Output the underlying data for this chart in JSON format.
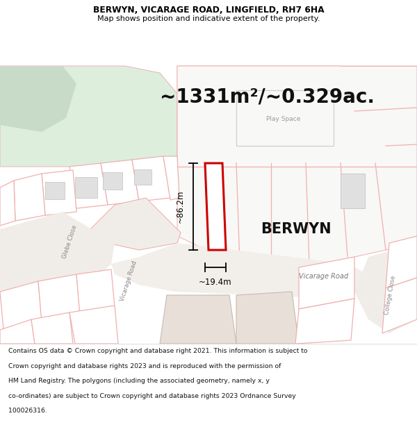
{
  "title_line1": "BERWYN, VICARAGE ROAD, LINGFIELD, RH7 6HA",
  "title_line2": "Map shows position and indicative extent of the property.",
  "area_text": "~1331m²/~0.329ac.",
  "property_label": "BERWYN",
  "dim_height": "~86.2m",
  "dim_width": "~19.4m",
  "road_label": "Vicarage Road",
  "play_space_label": "Play Space",
  "glebe_close_label": "Glebe Close",
  "vicarage_road_label": "Vicarage Road",
  "vicarage_road_left_label": "Vicarage Road",
  "college_close_label": "College Close",
  "footer_lines": [
    "Contains OS data © Crown copyright and database right 2021. This information is subject to",
    "Crown copyright and database rights 2023 and is reproduced with the permission of",
    "HM Land Registry. The polygons (including the associated geometry, namely x, y",
    "co-ordinates) are subject to Crown copyright and database rights 2023 Ordnance Survey",
    "100026316."
  ],
  "map_bg": "#eef3ee",
  "header_bg": "#ffffff",
  "footer_bg": "#ffffff",
  "property_fill": "#ffffff",
  "property_edge": "#cc0000",
  "plot_line_color": "#f0b0b0",
  "plot_fill": "#ffffff",
  "green_light": "#ddeedd",
  "green_dark": "#c8dbc8",
  "road_fill": "#e8e4dc",
  "building_fill": "#e8e0d8",
  "building_edge": "#c8b8b0",
  "grey_box_fill": "#e0e0e0",
  "grey_box_edge": "#c8c8c8"
}
